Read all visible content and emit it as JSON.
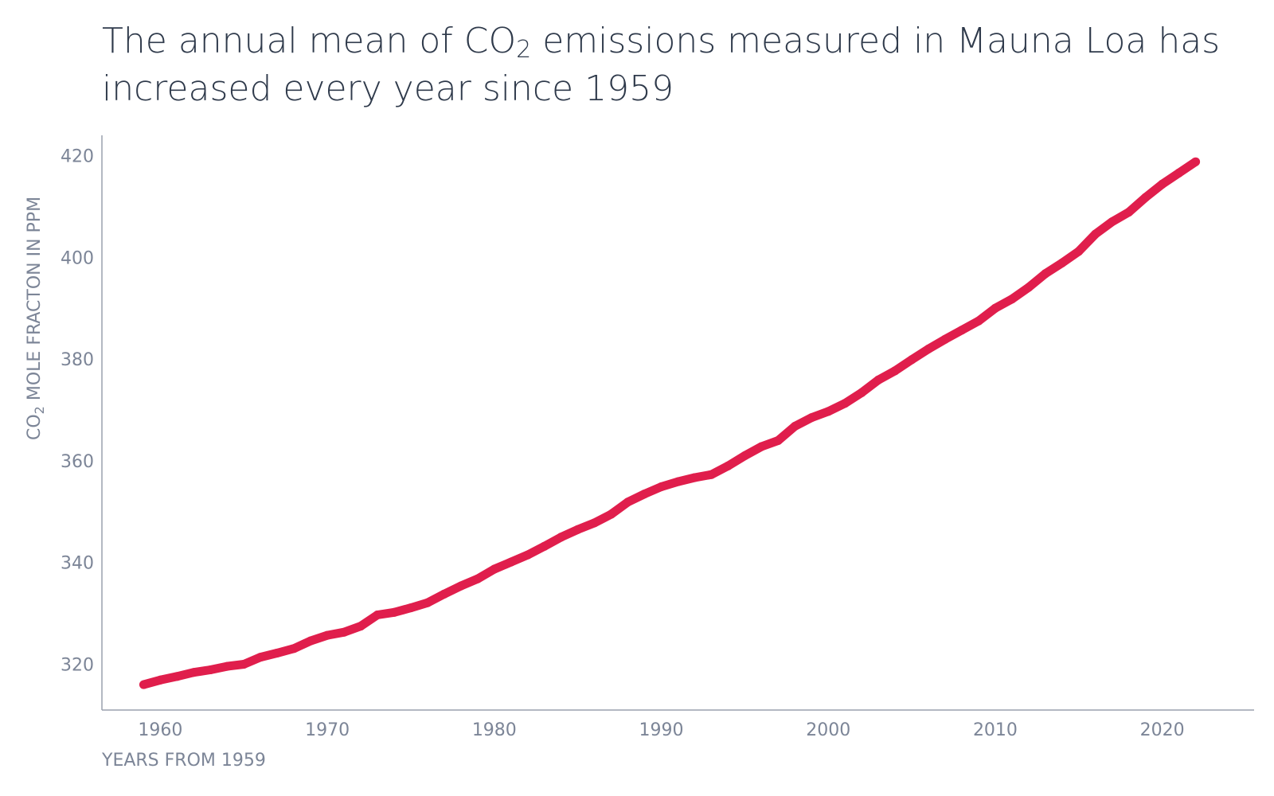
{
  "chart_data": {
    "type": "line",
    "title": {
      "pre": "The annual mean of CO",
      "sub": "2",
      "post": " emissions measured in Mauna Loa has increased every year since 1959"
    },
    "xlabel": "YEARS FROM 1959",
    "ylabel": {
      "pre": "CO",
      "sub": "2",
      "post": " MOLE FRACTON IN PPM"
    },
    "xlim": [
      1956.5,
      2025.5
    ],
    "ylim": [
      311,
      424
    ],
    "xticks": [
      1960,
      1970,
      1980,
      1990,
      2000,
      2010,
      2020
    ],
    "yticks": [
      320,
      340,
      360,
      380,
      400,
      420
    ],
    "grid": false,
    "line_color": "#e01e4c",
    "axis_color": "#9aa1ad",
    "series": [
      {
        "x": [
          1959,
          1960,
          1961,
          1962,
          1963,
          1964,
          1965,
          1966,
          1967,
          1968,
          1969,
          1970,
          1971,
          1972,
          1973,
          1974,
          1975,
          1976,
          1977,
          1978,
          1979,
          1980,
          1981,
          1982,
          1983,
          1984,
          1985,
          1986,
          1987,
          1988,
          1989,
          1990,
          1991,
          1992,
          1993,
          1994,
          1995,
          1996,
          1997,
          1998,
          1999,
          2000,
          2001,
          2002,
          2003,
          2004,
          2005,
          2006,
          2007,
          2008,
          2009,
          2010,
          2011,
          2012,
          2013,
          2014,
          2015,
          2016,
          2017,
          2018,
          2019,
          2020,
          2021,
          2022
        ],
        "values": [
          316.0,
          316.9,
          317.6,
          318.4,
          318.9,
          319.6,
          320.0,
          321.4,
          322.2,
          323.1,
          324.6,
          325.7,
          326.3,
          327.5,
          329.7,
          330.2,
          331.1,
          332.1,
          333.8,
          335.4,
          336.8,
          338.7,
          340.1,
          341.5,
          343.2,
          345.0,
          346.5,
          347.8,
          349.5,
          351.9,
          353.5,
          354.9,
          355.9,
          356.7,
          357.3,
          359.0,
          361.0,
          362.8,
          364.0,
          366.8,
          368.5,
          369.7,
          371.3,
          373.4,
          375.9,
          377.7,
          379.9,
          382.0,
          383.9,
          385.7,
          387.5,
          390.0,
          391.8,
          394.1,
          396.8,
          398.9,
          401.2,
          404.6,
          407.0,
          408.9,
          411.8,
          414.4,
          416.6,
          418.8
        ]
      }
    ]
  }
}
